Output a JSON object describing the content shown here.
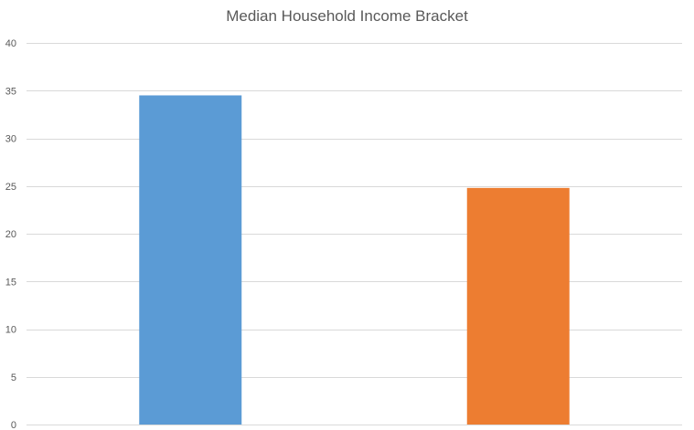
{
  "chart_data": {
    "type": "bar",
    "title": "Median Household Income Bracket",
    "xlabel": "",
    "ylabel": "",
    "categories": [
      "",
      ""
    ],
    "values": [
      34.5,
      24.8
    ],
    "colors": [
      "#5b9bd5",
      "#ed7d31"
    ],
    "ylim": [
      0,
      40
    ],
    "yticks": [
      0,
      5,
      10,
      15,
      20,
      25,
      30,
      35,
      40
    ],
    "grid": true,
    "legend": "none"
  }
}
